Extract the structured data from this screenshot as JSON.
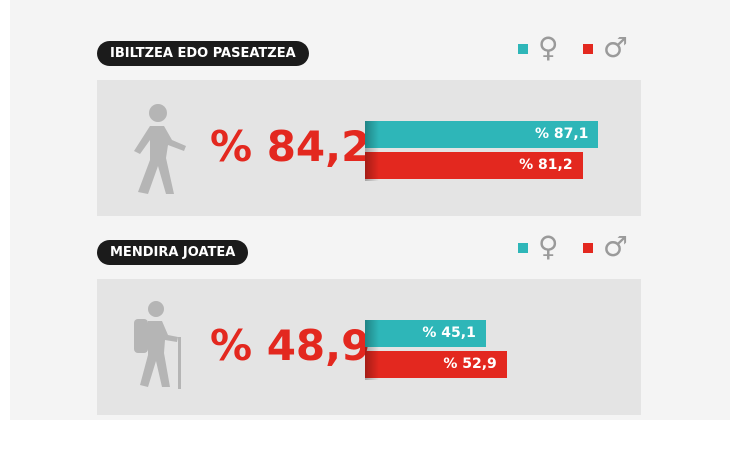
{
  "chart_data": [
    {
      "type": "bar",
      "orientation": "horizontal",
      "title": "IBILTZEA EDO PASEATZEA",
      "total": 84.2,
      "total_label": "% 84,2",
      "xlim": [
        0,
        100
      ],
      "series": [
        {
          "name": "♀",
          "color": "#2eb6b8",
          "values": [
            87.1
          ],
          "value_labels": [
            "% 87,1"
          ]
        },
        {
          "name": "♂",
          "color": "#e3281f",
          "values": [
            81.2
          ],
          "value_labels": [
            "% 81,2"
          ]
        }
      ]
    },
    {
      "type": "bar",
      "orientation": "horizontal",
      "title": "MENDIRA JOATEA",
      "total": 48.9,
      "total_label": "% 48,9",
      "xlim": [
        0,
        100
      ],
      "series": [
        {
          "name": "♀",
          "color": "#2eb6b8",
          "values": [
            45.1
          ],
          "value_labels": [
            "% 45,1"
          ]
        },
        {
          "name": "♂",
          "color": "#e3281f",
          "values": [
            52.9
          ],
          "value_labels": [
            "% 52,9"
          ]
        }
      ]
    }
  ]
}
